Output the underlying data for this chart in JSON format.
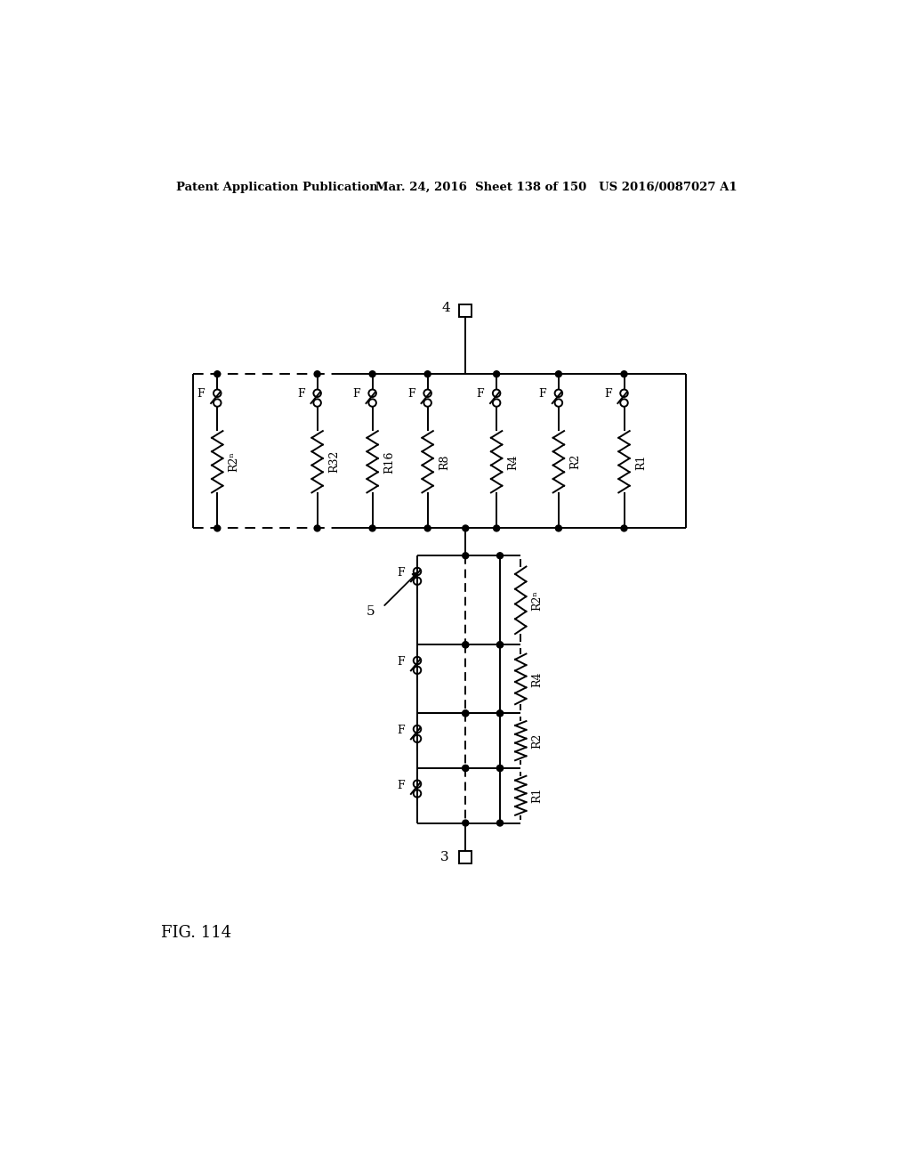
{
  "title_line1": "Patent Application Publication",
  "title_line2": "Mar. 24, 2016  Sheet 138 of 150   US 2016/0087027 A1",
  "fig_label": "FIG. 114",
  "bg_color": "#ffffff",
  "line_color": "#000000",
  "top_res_labels": [
    "R2ⁿ",
    "R32",
    "R16",
    "R8",
    "R4",
    "R2",
    "R1"
  ],
  "vert_res_labels": [
    "R2ⁿ",
    "R4",
    "R2",
    "R1"
  ],
  "node4_label": "4",
  "node3_label": "3",
  "node5_label": "5"
}
